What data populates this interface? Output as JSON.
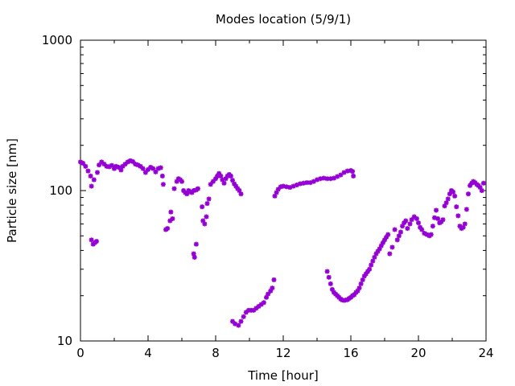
{
  "chart_data": {
    "type": "scatter",
    "title": "Modes location (5/9/1)",
    "xlabel": "Time [hour]",
    "ylabel": "Particle size [nm]",
    "xlim": [
      0,
      24
    ],
    "ylim": [
      10,
      1000
    ],
    "yscale": "log",
    "x_ticks": [
      0,
      4,
      8,
      12,
      16,
      20,
      24
    ],
    "y_ticks": [
      10,
      100,
      1000
    ],
    "grid": false,
    "marker_color": "#9400d3",
    "series": [
      {
        "points": [
          [
            0.0,
            155
          ],
          [
            0.15,
            152
          ],
          [
            0.3,
            145
          ],
          [
            0.45,
            135
          ],
          [
            0.6,
            125
          ],
          [
            0.65,
            107
          ],
          [
            0.8,
            118
          ],
          [
            1.0,
            132
          ],
          [
            1.1,
            148
          ],
          [
            1.25,
            155
          ],
          [
            1.4,
            150
          ],
          [
            1.55,
            145
          ],
          [
            1.7,
            144
          ],
          [
            1.85,
            147
          ],
          [
            2.0,
            140
          ],
          [
            2.1,
            145
          ],
          [
            2.25,
            143
          ],
          [
            2.4,
            137
          ],
          [
            2.5,
            145
          ],
          [
            2.65,
            150
          ],
          [
            2.8,
            155
          ],
          [
            2.95,
            158
          ],
          [
            3.1,
            156
          ],
          [
            3.25,
            150
          ],
          [
            3.4,
            148
          ],
          [
            3.55,
            145
          ],
          [
            3.7,
            140
          ],
          [
            3.85,
            132
          ],
          [
            4.0,
            138
          ],
          [
            4.15,
            143
          ],
          [
            4.3,
            140
          ],
          [
            4.45,
            133
          ],
          [
            4.6,
            140
          ],
          [
            4.75,
            142
          ],
          [
            4.85,
            125
          ],
          [
            4.9,
            110
          ],
          [
            0.65,
            47
          ],
          [
            0.75,
            44
          ],
          [
            0.85,
            45
          ],
          [
            0.95,
            46
          ],
          [
            5.05,
            55
          ],
          [
            5.15,
            56
          ],
          [
            5.3,
            63
          ],
          [
            5.35,
            72
          ],
          [
            5.45,
            65
          ],
          [
            5.55,
            103
          ],
          [
            5.7,
            115
          ],
          [
            5.8,
            120
          ],
          [
            5.9,
            118
          ],
          [
            6.0,
            115
          ],
          [
            6.1,
            100
          ],
          [
            6.2,
            97
          ],
          [
            6.3,
            95
          ],
          [
            6.4,
            100
          ],
          [
            6.5,
            98
          ],
          [
            6.6,
            97
          ],
          [
            6.7,
            100
          ],
          [
            6.85,
            101
          ],
          [
            6.95,
            103
          ],
          [
            6.7,
            38
          ],
          [
            6.75,
            36
          ],
          [
            6.85,
            44
          ],
          [
            7.2,
            78
          ],
          [
            7.25,
            63
          ],
          [
            7.35,
            60
          ],
          [
            7.45,
            67
          ],
          [
            7.5,
            82
          ],
          [
            7.6,
            88
          ],
          [
            7.7,
            110
          ],
          [
            7.85,
            115
          ],
          [
            8.0,
            120
          ],
          [
            8.1,
            125
          ],
          [
            8.2,
            130
          ],
          [
            8.3,
            125
          ],
          [
            8.4,
            118
          ],
          [
            8.5,
            112
          ],
          [
            8.6,
            120
          ],
          [
            8.7,
            125
          ],
          [
            8.8,
            128
          ],
          [
            8.9,
            125
          ],
          [
            9.0,
            117
          ],
          [
            9.1,
            111
          ],
          [
            9.2,
            107
          ],
          [
            9.3,
            103
          ],
          [
            9.4,
            100
          ],
          [
            9.5,
            95
          ],
          [
            9.0,
            13.5
          ],
          [
            9.15,
            13
          ],
          [
            9.35,
            12.7
          ],
          [
            9.5,
            13.5
          ],
          [
            9.65,
            14.5
          ],
          [
            9.8,
            15.5
          ],
          [
            9.95,
            16
          ],
          [
            10.1,
            16
          ],
          [
            10.25,
            16
          ],
          [
            10.4,
            16.5
          ],
          [
            10.55,
            17
          ],
          [
            10.7,
            17.5
          ],
          [
            10.85,
            18
          ],
          [
            11.0,
            19.5
          ],
          [
            11.1,
            20.5
          ],
          [
            11.25,
            21.5
          ],
          [
            11.35,
            22.5
          ],
          [
            11.45,
            25.5
          ],
          [
            11.5,
            92
          ],
          [
            11.6,
            97
          ],
          [
            11.7,
            102
          ],
          [
            11.85,
            106
          ],
          [
            12.0,
            107
          ],
          [
            12.2,
            106
          ],
          [
            12.4,
            105
          ],
          [
            12.6,
            107
          ],
          [
            12.8,
            109
          ],
          [
            13.0,
            111
          ],
          [
            13.2,
            112
          ],
          [
            13.4,
            113
          ],
          [
            13.6,
            113
          ],
          [
            13.8,
            115
          ],
          [
            14.0,
            118
          ],
          [
            14.2,
            120
          ],
          [
            14.4,
            121
          ],
          [
            14.6,
            120
          ],
          [
            14.8,
            120
          ],
          [
            15.0,
            121
          ],
          [
            15.2,
            124
          ],
          [
            15.4,
            127
          ],
          [
            15.6,
            132
          ],
          [
            15.8,
            135
          ],
          [
            16.0,
            136
          ],
          [
            16.1,
            134
          ],
          [
            16.15,
            125
          ],
          [
            14.6,
            29
          ],
          [
            14.7,
            26.5
          ],
          [
            14.8,
            24
          ],
          [
            14.9,
            22
          ],
          [
            15.0,
            21
          ],
          [
            15.1,
            20.5
          ],
          [
            15.2,
            20
          ],
          [
            15.3,
            19.5
          ],
          [
            15.4,
            19
          ],
          [
            15.5,
            18.7
          ],
          [
            15.6,
            18.6
          ],
          [
            15.7,
            18.7
          ],
          [
            15.8,
            18.8
          ],
          [
            15.9,
            19.2
          ],
          [
            16.0,
            19.5
          ],
          [
            16.1,
            20
          ],
          [
            16.2,
            20.3
          ],
          [
            16.3,
            21
          ],
          [
            16.4,
            21.5
          ],
          [
            16.5,
            22.5
          ],
          [
            16.6,
            24
          ],
          [
            16.7,
            25.5
          ],
          [
            16.8,
            27
          ],
          [
            16.9,
            28
          ],
          [
            17.0,
            29
          ],
          [
            17.1,
            30
          ],
          [
            17.2,
            32
          ],
          [
            17.3,
            34
          ],
          [
            17.4,
            36
          ],
          [
            17.5,
            38
          ],
          [
            17.6,
            39.5
          ],
          [
            17.7,
            41
          ],
          [
            17.8,
            43
          ],
          [
            17.9,
            45
          ],
          [
            18.0,
            47
          ],
          [
            18.1,
            49
          ],
          [
            18.2,
            51
          ],
          [
            18.3,
            38
          ],
          [
            18.45,
            42
          ],
          [
            18.6,
            55
          ],
          [
            18.75,
            47
          ],
          [
            18.85,
            50
          ],
          [
            18.95,
            53
          ],
          [
            19.05,
            58
          ],
          [
            19.15,
            61
          ],
          [
            19.25,
            63
          ],
          [
            19.35,
            56
          ],
          [
            19.5,
            60
          ],
          [
            19.6,
            64
          ],
          [
            19.75,
            67
          ],
          [
            19.9,
            65
          ],
          [
            20.0,
            61
          ],
          [
            20.1,
            57
          ],
          [
            20.2,
            55
          ],
          [
            20.35,
            52
          ],
          [
            20.5,
            51
          ],
          [
            20.65,
            50
          ],
          [
            20.75,
            51
          ],
          [
            20.85,
            58
          ],
          [
            20.95,
            66
          ],
          [
            21.05,
            74
          ],
          [
            21.15,
            65
          ],
          [
            21.25,
            61
          ],
          [
            21.35,
            62
          ],
          [
            21.45,
            64
          ],
          [
            21.55,
            79
          ],
          [
            21.65,
            83
          ],
          [
            21.75,
            88
          ],
          [
            21.85,
            95
          ],
          [
            21.95,
            100
          ],
          [
            22.05,
            98
          ],
          [
            22.15,
            92
          ],
          [
            22.25,
            78
          ],
          [
            22.35,
            68
          ],
          [
            22.45,
            58
          ],
          [
            22.55,
            56
          ],
          [
            22.65,
            57
          ],
          [
            22.75,
            60
          ],
          [
            22.85,
            75
          ],
          [
            22.95,
            95
          ],
          [
            23.05,
            108
          ],
          [
            23.15,
            112
          ],
          [
            23.25,
            115
          ],
          [
            23.35,
            113
          ],
          [
            23.45,
            110
          ],
          [
            23.55,
            108
          ],
          [
            23.65,
            105
          ],
          [
            23.75,
            100
          ],
          [
            23.85,
            112
          ]
        ]
      }
    ]
  }
}
